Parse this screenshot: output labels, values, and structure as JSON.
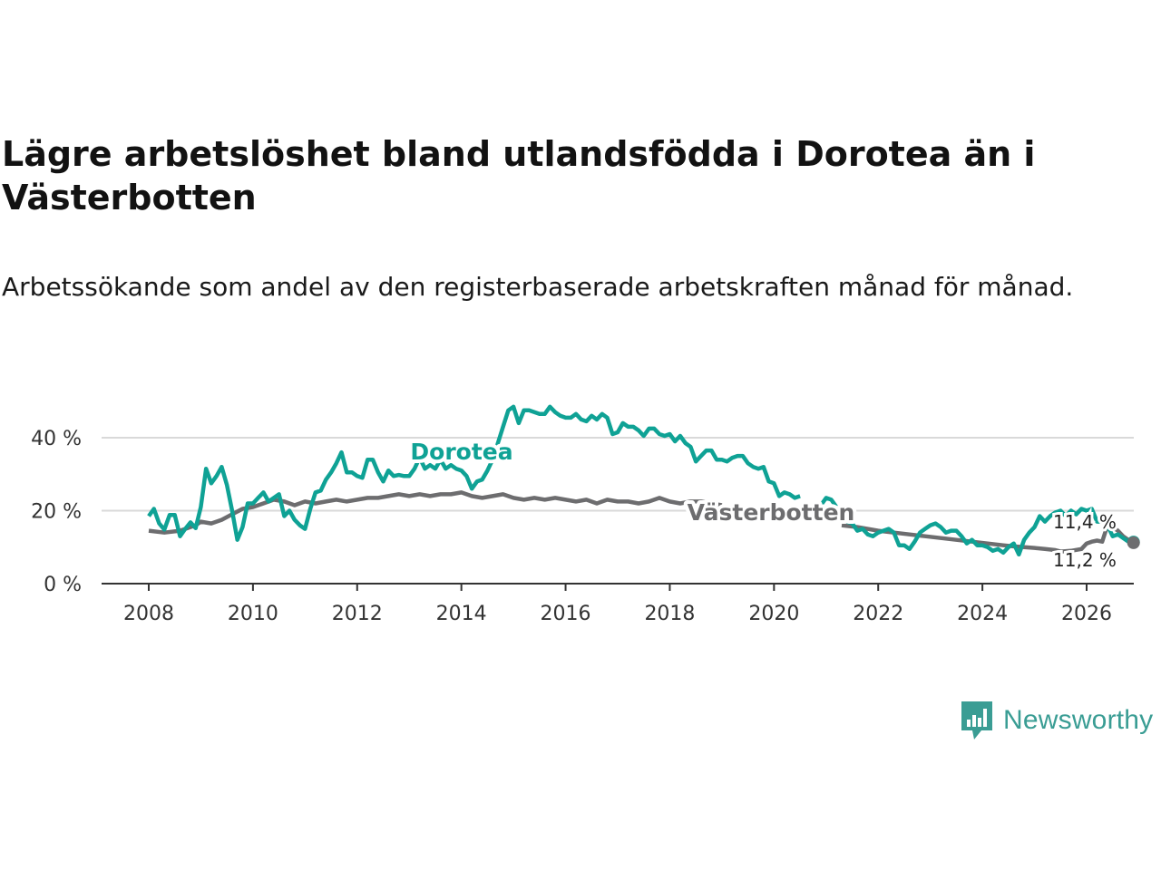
{
  "title": "Lägre arbetslöshet bland utlandsfödda i Dorotea än i Västerbotten",
  "subtitle": "Arbetssökande som andel av den registerbaserade arbetskraften månad för månad.",
  "brand": {
    "name": "Newsworthy",
    "icon": "newsworthy-logo-icon",
    "color": "#3a9d94"
  },
  "chart_data": {
    "type": "line",
    "title": "Lägre arbetslöshet bland utlandsfödda i Dorotea än i Västerbotten",
    "xlabel": "",
    "ylabel": "",
    "xlim": [
      2007.0,
      2026.9
    ],
    "ylim": [
      0,
      50
    ],
    "x_ticks": [
      2008,
      2010,
      2012,
      2014,
      2016,
      2018,
      2020,
      2022,
      2024,
      2026
    ],
    "y_ticks": [
      {
        "value": 0,
        "label": "0 %"
      },
      {
        "value": 20,
        "label": "20 %"
      },
      {
        "value": 40,
        "label": "40 %"
      }
    ],
    "grid": true,
    "series": [
      {
        "name": "Dorotea",
        "label": "Dorotea",
        "color": "#0fa295",
        "end_label": "11,4 %",
        "end_value": 11.4,
        "points": [
          [
            2008.0,
            18.5
          ],
          [
            2008.1,
            20.5
          ],
          [
            2008.2,
            16.5
          ],
          [
            2008.3,
            14.8
          ],
          [
            2008.4,
            18.8
          ],
          [
            2008.5,
            18.8
          ],
          [
            2008.6,
            13.0
          ],
          [
            2008.7,
            15.0
          ],
          [
            2008.8,
            16.8
          ],
          [
            2008.9,
            15.2
          ],
          [
            2009.0,
            21.0
          ],
          [
            2009.1,
            31.5
          ],
          [
            2009.2,
            27.5
          ],
          [
            2009.3,
            29.5
          ],
          [
            2009.4,
            32.0
          ],
          [
            2009.5,
            27.0
          ],
          [
            2009.6,
            20.0
          ],
          [
            2009.7,
            12.0
          ],
          [
            2009.8,
            15.5
          ],
          [
            2009.9,
            22.0
          ],
          [
            2010.0,
            22.0
          ],
          [
            2010.1,
            23.5
          ],
          [
            2010.2,
            25.0
          ],
          [
            2010.3,
            22.5
          ],
          [
            2010.4,
            23.5
          ],
          [
            2010.5,
            24.5
          ],
          [
            2010.6,
            18.5
          ],
          [
            2010.7,
            20.0
          ],
          [
            2010.8,
            17.5
          ],
          [
            2010.9,
            16.0
          ],
          [
            2011.0,
            15.0
          ],
          [
            2011.1,
            20.5
          ],
          [
            2011.2,
            25.0
          ],
          [
            2011.3,
            25.5
          ],
          [
            2011.4,
            28.5
          ],
          [
            2011.5,
            30.5
          ],
          [
            2011.6,
            33.0
          ],
          [
            2011.7,
            36.0
          ],
          [
            2011.8,
            30.5
          ],
          [
            2011.9,
            30.5
          ],
          [
            2012.0,
            29.5
          ],
          [
            2012.1,
            29.0
          ],
          [
            2012.2,
            34.0
          ],
          [
            2012.3,
            34.0
          ],
          [
            2012.4,
            30.5
          ],
          [
            2012.5,
            28.0
          ],
          [
            2012.6,
            31.0
          ],
          [
            2012.7,
            29.5
          ],
          [
            2012.8,
            29.8
          ],
          [
            2012.9,
            29.5
          ],
          [
            2013.0,
            29.5
          ],
          [
            2013.1,
            31.5
          ],
          [
            2013.2,
            34.5
          ],
          [
            2013.3,
            31.5
          ],
          [
            2013.4,
            32.5
          ],
          [
            2013.5,
            31.5
          ],
          [
            2013.6,
            34.0
          ],
          [
            2013.7,
            31.5
          ],
          [
            2013.8,
            32.5
          ],
          [
            2013.9,
            31.5
          ],
          [
            2014.0,
            31.0
          ],
          [
            2014.1,
            29.5
          ],
          [
            2014.2,
            26.0
          ],
          [
            2014.3,
            28.0
          ],
          [
            2014.4,
            28.5
          ],
          [
            2014.5,
            31.0
          ],
          [
            2014.6,
            34.0
          ],
          [
            2014.7,
            38.5
          ],
          [
            2014.8,
            43.0
          ],
          [
            2014.9,
            47.5
          ],
          [
            2015.0,
            48.5
          ],
          [
            2015.1,
            44.0
          ],
          [
            2015.2,
            47.5
          ],
          [
            2015.3,
            47.5
          ],
          [
            2015.4,
            47.0
          ],
          [
            2015.5,
            46.5
          ],
          [
            2015.6,
            46.5
          ],
          [
            2015.7,
            48.5
          ],
          [
            2015.8,
            47.0
          ],
          [
            2015.9,
            46.0
          ],
          [
            2016.0,
            45.5
          ],
          [
            2016.1,
            45.5
          ],
          [
            2016.2,
            46.5
          ],
          [
            2016.3,
            45.0
          ],
          [
            2016.4,
            44.5
          ],
          [
            2016.5,
            46.0
          ],
          [
            2016.6,
            45.0
          ],
          [
            2016.7,
            46.5
          ],
          [
            2016.8,
            45.5
          ],
          [
            2016.9,
            41.0
          ],
          [
            2017.0,
            41.5
          ],
          [
            2017.1,
            44.0
          ],
          [
            2017.2,
            43.0
          ],
          [
            2017.3,
            43.0
          ],
          [
            2017.4,
            42.0
          ],
          [
            2017.5,
            40.5
          ],
          [
            2017.6,
            42.5
          ],
          [
            2017.7,
            42.5
          ],
          [
            2017.8,
            41.0
          ],
          [
            2017.9,
            40.5
          ],
          [
            2018.0,
            41.0
          ],
          [
            2018.1,
            39.0
          ],
          [
            2018.2,
            40.5
          ],
          [
            2018.3,
            38.5
          ],
          [
            2018.4,
            37.5
          ],
          [
            2018.5,
            33.5
          ],
          [
            2018.6,
            35.0
          ],
          [
            2018.7,
            36.5
          ],
          [
            2018.8,
            36.5
          ],
          [
            2018.9,
            34.0
          ],
          [
            2019.0,
            34.0
          ],
          [
            2019.1,
            33.5
          ],
          [
            2019.2,
            34.5
          ],
          [
            2019.3,
            35.0
          ],
          [
            2019.4,
            35.0
          ],
          [
            2019.5,
            33.0
          ],
          [
            2019.6,
            32.0
          ],
          [
            2019.7,
            31.5
          ],
          [
            2019.8,
            32.0
          ],
          [
            2019.9,
            28.0
          ],
          [
            2020.0,
            27.5
          ],
          [
            2020.1,
            24.0
          ],
          [
            2020.2,
            25.0
          ],
          [
            2020.3,
            24.5
          ],
          [
            2020.4,
            23.5
          ],
          [
            2020.5,
            24.0
          ]
        ],
        "points_late": [
          [
            2020.8,
            20.0
          ],
          [
            2020.9,
            21.5
          ],
          [
            2021.0,
            23.5
          ],
          [
            2021.1,
            23.0
          ],
          [
            2021.2,
            21.0
          ],
          [
            2021.3,
            19.0
          ],
          [
            2021.4,
            17.0
          ],
          [
            2021.5,
            16.5
          ],
          [
            2021.6,
            14.5
          ],
          [
            2021.7,
            15.0
          ],
          [
            2021.8,
            13.5
          ],
          [
            2021.9,
            13.0
          ],
          [
            2022.0,
            14.0
          ],
          [
            2022.1,
            14.5
          ],
          [
            2022.2,
            15.0
          ],
          [
            2022.3,
            14.0
          ],
          [
            2022.4,
            10.5
          ],
          [
            2022.5,
            10.5
          ],
          [
            2022.6,
            9.5
          ],
          [
            2022.7,
            11.5
          ],
          [
            2022.8,
            14.0
          ],
          [
            2022.9,
            15.0
          ],
          [
            2023.0,
            16.0
          ],
          [
            2023.1,
            16.5
          ],
          [
            2023.2,
            15.5
          ],
          [
            2023.3,
            14.0
          ],
          [
            2023.4,
            14.5
          ],
          [
            2023.5,
            14.5
          ],
          [
            2023.6,
            13.0
          ],
          [
            2023.7,
            11.0
          ],
          [
            2023.8,
            12.0
          ],
          [
            2023.9,
            10.5
          ],
          [
            2024.0,
            10.5
          ],
          [
            2024.1,
            10.0
          ],
          [
            2024.2,
            9.0
          ],
          [
            2024.3,
            9.5
          ],
          [
            2024.4,
            8.5
          ],
          [
            2024.5,
            10.0
          ],
          [
            2024.6,
            11.0
          ],
          [
            2024.7,
            8.0
          ],
          [
            2024.8,
            12.0
          ],
          [
            2024.9,
            14.0
          ],
          [
            2025.0,
            15.5
          ],
          [
            2025.1,
            18.5
          ],
          [
            2025.2,
            17.0
          ],
          [
            2025.3,
            18.5
          ],
          [
            2025.4,
            19.5
          ],
          [
            2025.5,
            20.0
          ],
          [
            2025.6,
            18.5
          ],
          [
            2025.7,
            20.0
          ],
          [
            2025.8,
            19.0
          ],
          [
            2025.9,
            20.5
          ],
          [
            2026.0,
            20.0
          ],
          [
            2026.1,
            20.5
          ],
          [
            2026.2,
            17.0
          ],
          [
            2026.3,
            17.0
          ],
          [
            2026.4,
            16.0
          ],
          [
            2026.5,
            13.0
          ],
          [
            2026.6,
            13.5
          ],
          [
            2026.7,
            12.5
          ],
          [
            2026.8,
            11.5
          ],
          [
            2026.9,
            11.4
          ]
        ]
      },
      {
        "name": "Västerbotten",
        "label": "Västerbotten",
        "color": "#6d6d6f",
        "end_label": "11,2 %",
        "end_value": 11.2,
        "points": [
          [
            2008.0,
            14.5
          ],
          [
            2008.3,
            14.0
          ],
          [
            2008.6,
            14.5
          ],
          [
            2008.9,
            16.0
          ],
          [
            2009.0,
            17.0
          ],
          [
            2009.2,
            16.5
          ],
          [
            2009.4,
            17.5
          ],
          [
            2009.6,
            19.0
          ],
          [
            2009.8,
            20.5
          ],
          [
            2010.0,
            21.0
          ],
          [
            2010.2,
            22.0
          ],
          [
            2010.4,
            23.0
          ],
          [
            2010.6,
            22.5
          ],
          [
            2010.8,
            21.5
          ],
          [
            2011.0,
            22.5
          ],
          [
            2011.2,
            22.0
          ],
          [
            2011.4,
            22.5
          ],
          [
            2011.6,
            23.0
          ],
          [
            2011.8,
            22.5
          ],
          [
            2012.0,
            23.0
          ],
          [
            2012.2,
            23.5
          ],
          [
            2012.4,
            23.5
          ],
          [
            2012.6,
            24.0
          ],
          [
            2012.8,
            24.5
          ],
          [
            2013.0,
            24.0
          ],
          [
            2013.2,
            24.5
          ],
          [
            2013.4,
            24.0
          ],
          [
            2013.6,
            24.5
          ],
          [
            2013.8,
            24.5
          ],
          [
            2014.0,
            25.0
          ],
          [
            2014.2,
            24.0
          ],
          [
            2014.4,
            23.5
          ],
          [
            2014.6,
            24.0
          ],
          [
            2014.8,
            24.5
          ],
          [
            2015.0,
            23.5
          ],
          [
            2015.2,
            23.0
          ],
          [
            2015.4,
            23.5
          ],
          [
            2015.6,
            23.0
          ],
          [
            2015.8,
            23.5
          ],
          [
            2016.0,
            23.0
          ],
          [
            2016.2,
            22.5
          ],
          [
            2016.4,
            23.0
          ],
          [
            2016.6,
            22.0
          ],
          [
            2016.8,
            23.0
          ],
          [
            2017.0,
            22.5
          ],
          [
            2017.2,
            22.5
          ],
          [
            2017.4,
            22.0
          ],
          [
            2017.6,
            22.5
          ],
          [
            2017.8,
            23.5
          ],
          [
            2018.0,
            22.5
          ],
          [
            2018.2,
            22.0
          ],
          [
            2018.4,
            22.5
          ],
          [
            2018.6,
            22.5
          ],
          [
            2018.8,
            22.0
          ],
          [
            2019.0,
            21.5
          ]
        ],
        "points_late": [
          [
            2021.3,
            16.0
          ],
          [
            2021.6,
            15.5
          ],
          [
            2021.8,
            15.0
          ],
          [
            2022.0,
            14.5
          ],
          [
            2022.3,
            14.0
          ],
          [
            2022.6,
            13.5
          ],
          [
            2022.9,
            13.0
          ],
          [
            2023.2,
            12.5
          ],
          [
            2023.5,
            12.0
          ],
          [
            2023.8,
            11.5
          ],
          [
            2024.1,
            11.0
          ],
          [
            2024.4,
            10.5
          ],
          [
            2024.6,
            10.2
          ],
          [
            2024.8,
            10.0
          ],
          [
            2025.0,
            9.8
          ],
          [
            2025.2,
            9.5
          ],
          [
            2025.4,
            9.2
          ],
          [
            2025.5,
            8.8
          ],
          [
            2025.7,
            9.0
          ],
          [
            2025.9,
            9.5
          ],
          [
            2026.0,
            11.0
          ],
          [
            2026.1,
            11.5
          ],
          [
            2026.2,
            11.8
          ],
          [
            2026.3,
            11.5
          ],
          [
            2026.4,
            16.0
          ],
          [
            2026.5,
            15.5
          ],
          [
            2026.6,
            14.5
          ],
          [
            2026.7,
            13.0
          ],
          [
            2026.8,
            12.0
          ],
          [
            2026.9,
            11.2
          ]
        ]
      }
    ]
  }
}
